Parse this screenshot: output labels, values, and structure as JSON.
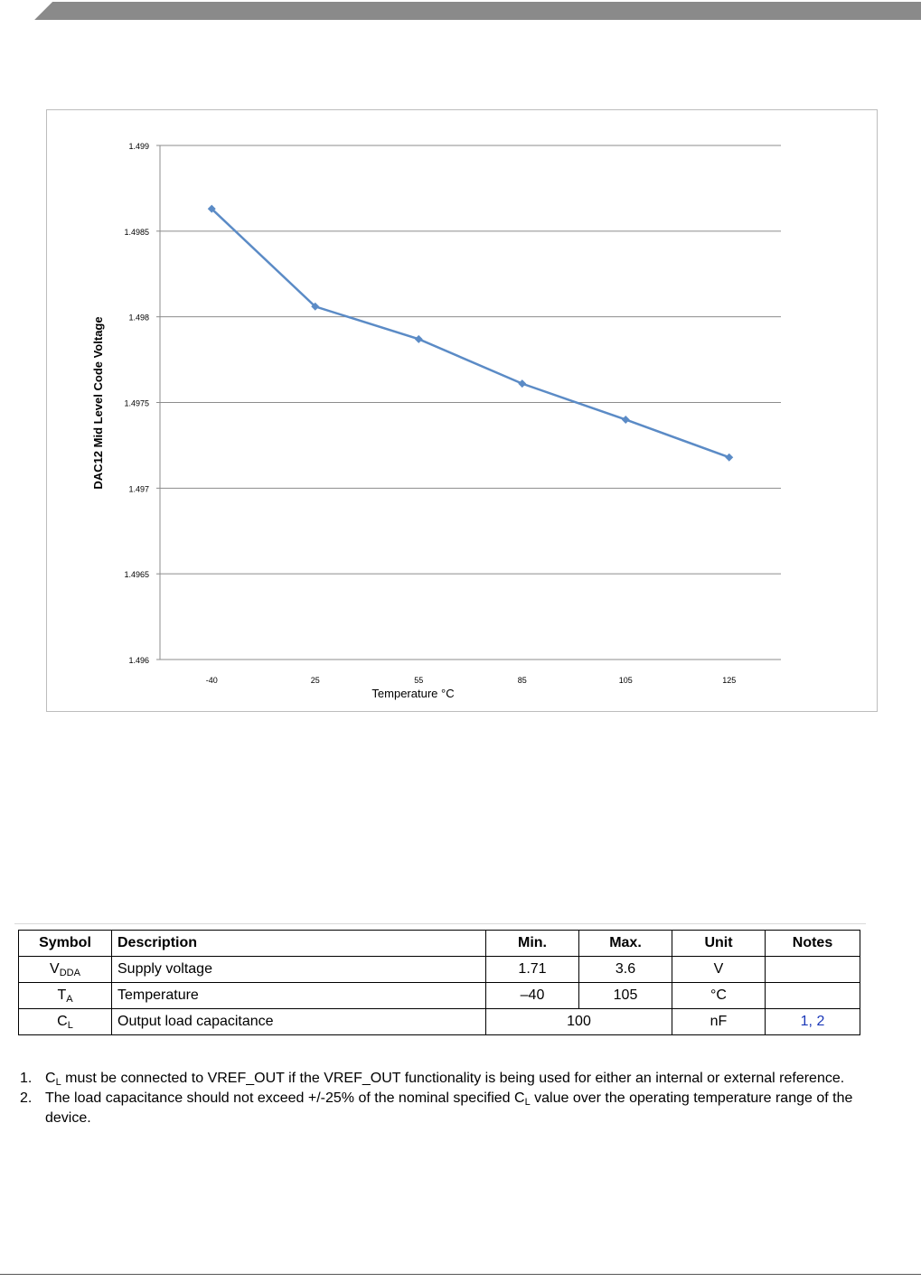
{
  "chart_data": {
    "type": "line",
    "title": "",
    "xlabel": "Temperature °C",
    "ylabel": "DAC12 Mid Level Code Voltage",
    "categories": [
      "-40",
      "25",
      "55",
      "85",
      "105",
      "125"
    ],
    "series": [
      {
        "values": [
          1.49863,
          1.49806,
          1.49787,
          1.49761,
          1.4974,
          1.49718
        ]
      }
    ],
    "y_ticks": [
      "1.499",
      "1.4985",
      "1.498",
      "1.4975",
      "1.497",
      "1.4965",
      "1.496"
    ],
    "ylim": [
      1.496,
      1.499
    ],
    "grid": true,
    "legend": "none",
    "line_color": "#5b8bc6",
    "grid_color": "#8c8c8c"
  },
  "table": {
    "headers": [
      "Symbol",
      "Description",
      "Min.",
      "Max.",
      "Unit",
      "Notes"
    ],
    "rows": [
      {
        "symbol": "V",
        "symbol_sub": "DDA",
        "description": "Supply voltage",
        "min": "1.71",
        "max": "3.6",
        "unit": "V",
        "notes": ""
      },
      {
        "symbol": "T",
        "symbol_sub": "A",
        "description": "Temperature",
        "min": "–40",
        "max": "105",
        "unit": "°C",
        "notes": ""
      },
      {
        "symbol": "C",
        "symbol_sub": "L",
        "description": "Output load capacitance",
        "typ": "100",
        "unit": "nF",
        "notes": "1, 2"
      }
    ]
  },
  "notes": [
    {
      "num": "1.",
      "pre": "C",
      "sub": "L",
      "post": " must be connected to VREF_OUT if the VREF_OUT functionality is being used for either an internal or external reference."
    },
    {
      "num": "2.",
      "pre": "The load capacitance should not exceed +/-25% of the nominal specified C",
      "sub": "L",
      "post": " value over the operating temperature range of the device."
    }
  ],
  "colors": {
    "header_band": "#8a8a8a",
    "link": "#1a37b8"
  }
}
